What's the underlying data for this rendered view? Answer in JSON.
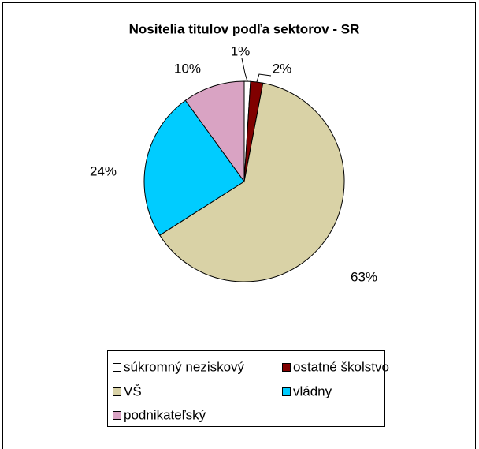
{
  "chart_data": {
    "type": "pie",
    "title": "Nositelia titulov podľa sektorov - SR",
    "categories": [
      "súkromný neziskový",
      "ostatné školstvo",
      "VŠ",
      "vládny",
      "podnikateľský"
    ],
    "values": [
      1,
      2,
      63,
      24,
      10
    ],
    "value_labels": [
      "1%",
      "2%",
      "63%",
      "24%",
      "10%"
    ],
    "colors": [
      "#ffffff",
      "#800000",
      "#d9d2a6",
      "#00ccff",
      "#d9a3c3"
    ],
    "legend": "bottom"
  }
}
